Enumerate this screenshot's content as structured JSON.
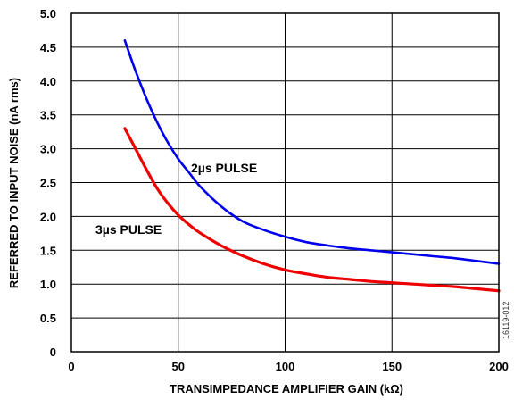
{
  "chart_data": {
    "type": "line",
    "xlabel": "TRANSIMPEDANCE AMPLIFIER GAIN (kΩ)",
    "ylabel": "REFERRED TO INPUT NOISE (nA rms)",
    "xlim": [
      0,
      200
    ],
    "ylim": [
      0,
      5.0
    ],
    "x_ticks": [
      "0",
      "50",
      "100",
      "150",
      "200"
    ],
    "y_ticks": [
      "0",
      "0.5",
      "1.0",
      "1.5",
      "2.0",
      "2.5",
      "3.0",
      "3.5",
      "4.0",
      "4.5",
      "5.0"
    ],
    "grid": true,
    "series": [
      {
        "name": "2µs PULSE",
        "color": "#0000ee",
        "x": [
          25,
          30,
          35,
          40,
          45,
          50,
          55,
          60,
          70,
          80,
          90,
          100,
          110,
          120,
          130,
          140,
          150,
          160,
          170,
          180,
          190,
          200
        ],
        "y": [
          4.6,
          4.15,
          3.75,
          3.4,
          3.1,
          2.85,
          2.65,
          2.45,
          2.15,
          1.93,
          1.8,
          1.7,
          1.62,
          1.57,
          1.53,
          1.5,
          1.47,
          1.44,
          1.41,
          1.38,
          1.34,
          1.3
        ]
      },
      {
        "name": "3µs PULSE",
        "color": "#ee0000",
        "x": [
          25,
          30,
          35,
          40,
          45,
          50,
          55,
          60,
          70,
          80,
          90,
          100,
          110,
          120,
          130,
          140,
          150,
          160,
          170,
          180,
          190,
          200
        ],
        "y": [
          3.3,
          3.0,
          2.7,
          2.42,
          2.2,
          2.02,
          1.88,
          1.76,
          1.57,
          1.42,
          1.3,
          1.21,
          1.15,
          1.1,
          1.07,
          1.04,
          1.02,
          1.0,
          0.98,
          0.96,
          0.93,
          0.9
        ]
      }
    ],
    "annotations": [
      "2µs PULSE",
      "3µs PULSE"
    ],
    "figure_id": "16119-012"
  }
}
